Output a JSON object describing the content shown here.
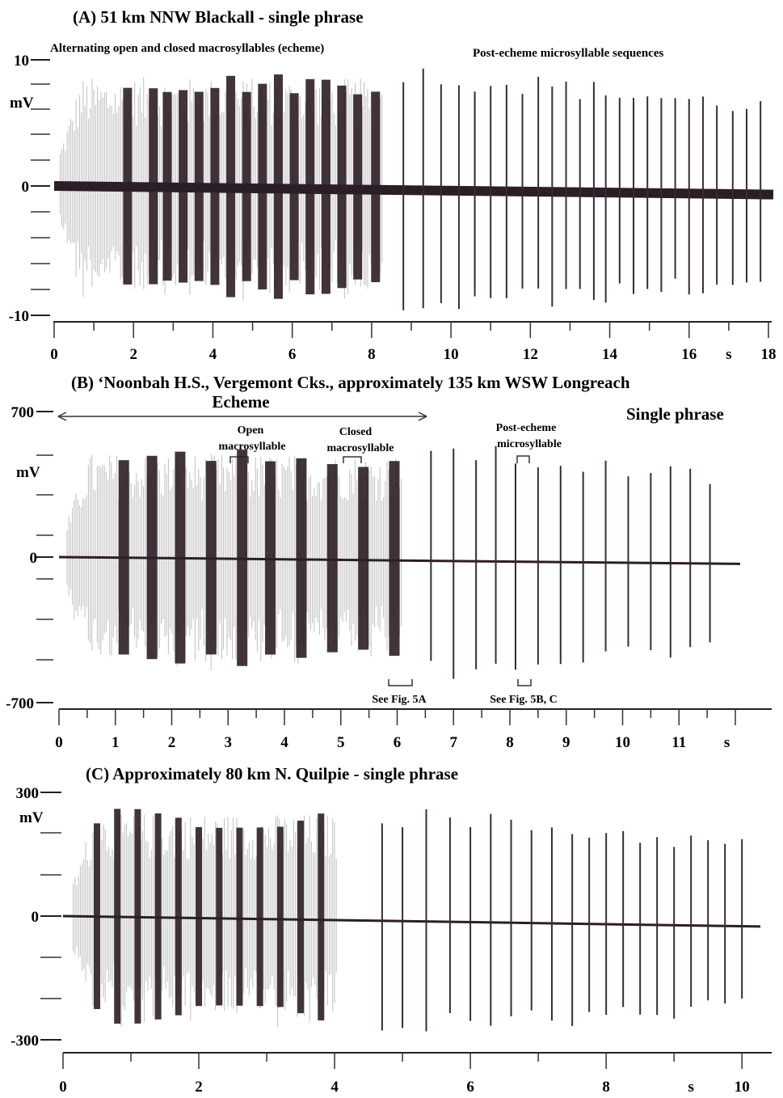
{
  "chart_data": [
    {
      "type": "line",
      "panel_title": "(A) 51 km NNW Blackall - single phrase",
      "ylabel": "mV",
      "xlabel": "s",
      "ylim": [
        -10,
        10
      ],
      "xlim": [
        0,
        18
      ],
      "y_tick_labels": [
        "10",
        "0",
        "-10"
      ],
      "x_tick_labels": [
        "0",
        "2",
        "4",
        "6",
        "8",
        "10",
        "12",
        "14",
        "16",
        "18"
      ],
      "annotations": {
        "echeme": "Alternating open and closed macrosyllables (echeme)",
        "post": "Post-echeme microsyllable sequences"
      },
      "series": [
        {
          "echeme_end_s": 8.3,
          "echeme_amplitude_mv": 8.5,
          "closed_macrosyllable_times_s": [
            1.85,
            2.5,
            2.85,
            3.25,
            3.65,
            4.05,
            4.45,
            4.85,
            5.25,
            5.65,
            6.05,
            6.45,
            6.85,
            7.25,
            7.65,
            8.1
          ],
          "microsyllable_times_s": [
            8.8,
            9.3,
            9.75,
            10.2,
            10.6,
            11.0,
            11.4,
            11.8,
            12.2,
            12.55,
            12.9,
            13.25,
            13.6,
            13.9,
            14.25,
            14.6,
            14.95,
            15.3,
            15.65,
            16.0,
            16.35,
            16.7,
            17.1,
            17.45,
            17.8
          ],
          "microsyllable_amplitude_mv": 9.5
        }
      ]
    },
    {
      "type": "line",
      "panel_title": "(B) ‘Noonbah H.S., Vergemont Cks., approximately 135 km WSW Longreach",
      "ylabel": "mV",
      "xlabel": "s",
      "ylim": [
        -700,
        700
      ],
      "xlim": [
        0,
        12
      ],
      "y_tick_labels": [
        "700",
        "0",
        "-700"
      ],
      "x_tick_labels": [
        "0",
        "1",
        "2",
        "3",
        "4",
        "5",
        "6",
        "7",
        "8",
        "9",
        "10",
        "11",
        "s"
      ],
      "annotations": {
        "echeme": "Echeme",
        "single_phrase": "Single phrase",
        "open_1": "Open",
        "open_2": "macrosyllable",
        "closed_1": "Closed",
        "closed_2": "macrosyllable",
        "post_1": "Post-echeme",
        "post_2": "microsyllable",
        "see_5a": "See Fig. 5A",
        "see_5bc": "See Fig. 5B, C"
      },
      "series": [
        {
          "echeme_end_s": 6.1,
          "echeme_amplitude_mv": 500,
          "closed_macrosyllable_times_s": [
            1.15,
            1.65,
            2.15,
            2.7,
            3.25,
            3.75,
            4.3,
            4.85,
            5.4,
            5.95
          ],
          "microsyllable_times_s": [
            6.6,
            7.0,
            7.4,
            7.75,
            8.1,
            8.5,
            8.9,
            9.3,
            9.7,
            10.1,
            10.5,
            10.85,
            11.2,
            11.55
          ],
          "microsyllable_amplitude_mv": 560
        }
      ]
    },
    {
      "type": "line",
      "panel_title": "(C) Approximately 80 km N. Quilpie - single phrase",
      "ylabel": "mV",
      "xlabel": "s",
      "ylim": [
        -300,
        300
      ],
      "xlim": [
        0,
        10.2
      ],
      "y_tick_labels": [
        "300",
        "0",
        "-300"
      ],
      "x_tick_labels": [
        "0",
        "2",
        "4",
        "6",
        "8",
        "s",
        "10"
      ],
      "series": [
        {
          "echeme_end_s": 4.05,
          "echeme_amplitude_mv": 250,
          "closed_macrosyllable_times_s": [
            0.5,
            0.8,
            1.1,
            1.4,
            1.7,
            2.0,
            2.3,
            2.6,
            2.9,
            3.2,
            3.5,
            3.8
          ],
          "microsyllable_times_s": [
            4.7,
            5.0,
            5.35,
            5.7,
            6.0,
            6.3,
            6.6,
            6.9,
            7.2,
            7.5,
            7.75,
            8.0,
            8.25,
            8.5,
            8.75,
            9.0,
            9.25,
            9.5,
            9.75,
            10.0
          ],
          "microsyllable_amplitude_mv": 270
        }
      ]
    }
  ]
}
